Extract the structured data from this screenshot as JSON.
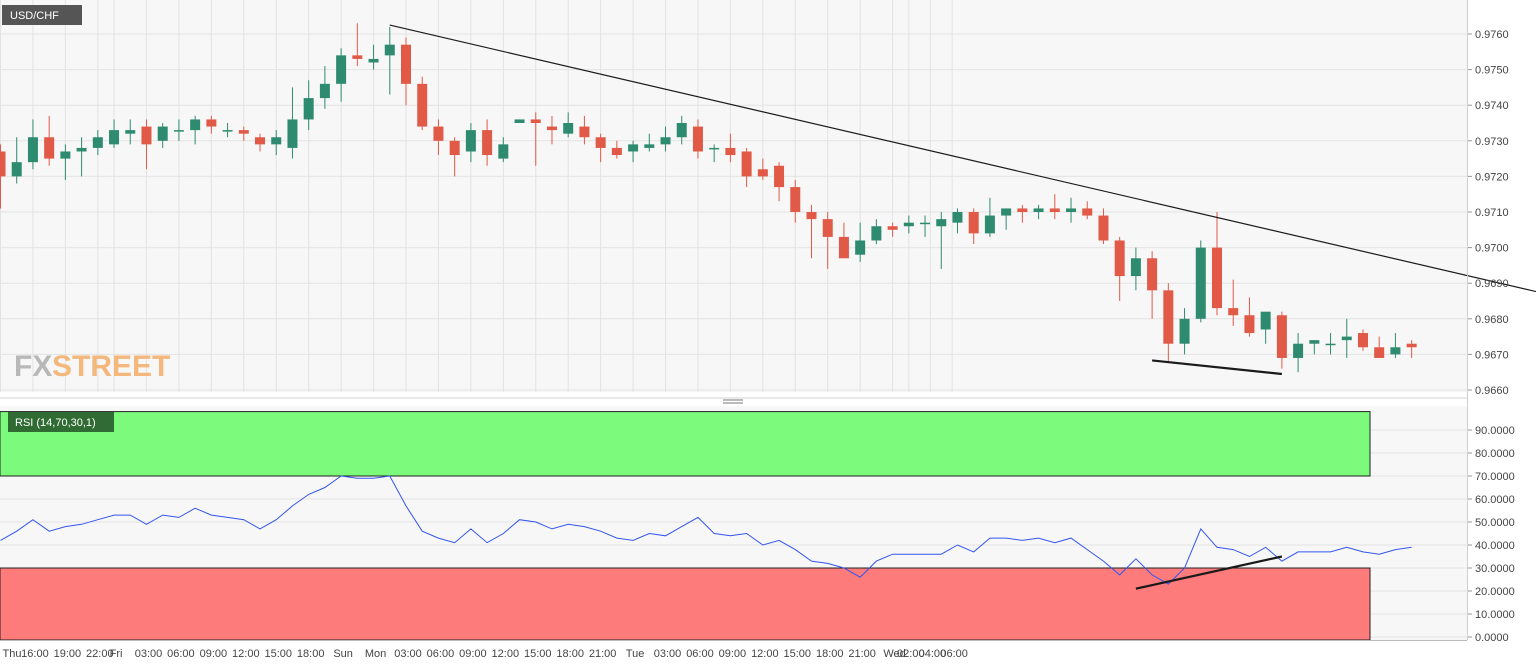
{
  "symbol": "USD/CHF",
  "watermark": {
    "part1": "FX",
    "part2": "STREET"
  },
  "colors": {
    "bull": "#2e8b6f",
    "bear": "#e05a47",
    "rsi_line": "#3355ee",
    "overbought_zone": "#7cfa7c",
    "oversold_zone": "#fd7b7b",
    "trendline": "#1a1a1a",
    "grid": "#e3e3e3",
    "panel_bg": "#f7f7f7"
  },
  "chart_data": [
    {
      "type": "candlestick",
      "title": "USD/CHF",
      "interval": "90 minutes",
      "ylim": [
        0.9658,
        0.9766
      ],
      "y_ticks": [
        "0.9760",
        "0.9750",
        "0.9740",
        "0.9730",
        "0.9720",
        "0.9710",
        "0.9700",
        "0.9690",
        "0.9680",
        "0.9670",
        "0.9660"
      ],
      "x_ticks": [
        "Thu",
        "16:00",
        "19:00",
        "22:00",
        "Fri",
        "03:00",
        "06:00",
        "09:00",
        "12:00",
        "15:00",
        "18:00",
        "Sun",
        "Mon",
        "03:00",
        "06:00",
        "09:00",
        "12:00",
        "15:00",
        "18:00",
        "21:00",
        "Tue",
        "03:00",
        "06:00",
        "09:00",
        "12:00",
        "15:00",
        "18:00",
        "21:00",
        "Wed",
        "02:00",
        "04:00",
        "06:00"
      ],
      "x_tick_index": [
        0,
        2,
        4,
        6,
        7,
        9,
        11,
        13,
        15,
        17,
        19,
        21,
        23,
        25,
        27,
        29,
        31,
        33,
        35,
        37,
        39,
        41,
        43,
        45,
        47,
        49,
        51,
        53,
        55,
        56,
        57.33,
        58.67
      ],
      "candles": [
        {
          "o": 0.9727,
          "h": 0.9729,
          "l": 0.9711,
          "c": 0.972
        },
        {
          "o": 0.972,
          "h": 0.9731,
          "l": 0.9718,
          "c": 0.9724
        },
        {
          "o": 0.9724,
          "h": 0.9736,
          "l": 0.9722,
          "c": 0.9731
        },
        {
          "o": 0.9731,
          "h": 0.9737,
          "l": 0.9723,
          "c": 0.9725
        },
        {
          "o": 0.9725,
          "h": 0.9729,
          "l": 0.9719,
          "c": 0.9727
        },
        {
          "o": 0.9727,
          "h": 0.9731,
          "l": 0.972,
          "c": 0.9728
        },
        {
          "o": 0.9728,
          "h": 0.9733,
          "l": 0.9726,
          "c": 0.9731
        },
        {
          "o": 0.9729,
          "h": 0.9736,
          "l": 0.9728,
          "c": 0.9733
        },
        {
          "o": 0.9732,
          "h": 0.9736,
          "l": 0.9729,
          "c": 0.9733
        },
        {
          "o": 0.9734,
          "h": 0.9736,
          "l": 0.9722,
          "c": 0.9729
        },
        {
          "o": 0.973,
          "h": 0.9735,
          "l": 0.9728,
          "c": 0.9734
        },
        {
          "o": 0.9733,
          "h": 0.9736,
          "l": 0.973,
          "c": 0.9733
        },
        {
          "o": 0.9733,
          "h": 0.9737,
          "l": 0.9729,
          "c": 0.9736
        },
        {
          "o": 0.9736,
          "h": 0.9737,
          "l": 0.9732,
          "c": 0.9734
        },
        {
          "o": 0.9733,
          "h": 0.9735,
          "l": 0.9731,
          "c": 0.9733
        },
        {
          "o": 0.9733,
          "h": 0.9734,
          "l": 0.973,
          "c": 0.9732
        },
        {
          "o": 0.9731,
          "h": 0.9732,
          "l": 0.9727,
          "c": 0.9729
        },
        {
          "o": 0.9729,
          "h": 0.9733,
          "l": 0.9726,
          "c": 0.9731
        },
        {
          "o": 0.9728,
          "h": 0.9745,
          "l": 0.9725,
          "c": 0.9736
        },
        {
          "o": 0.9736,
          "h": 0.9747,
          "l": 0.9733,
          "c": 0.9742
        },
        {
          "o": 0.9742,
          "h": 0.9751,
          "l": 0.9739,
          "c": 0.9746
        },
        {
          "o": 0.9746,
          "h": 0.9756,
          "l": 0.9741,
          "c": 0.9754
        },
        {
          "o": 0.9754,
          "h": 0.9763,
          "l": 0.9751,
          "c": 0.9753
        },
        {
          "o": 0.9752,
          "h": 0.9757,
          "l": 0.975,
          "c": 0.9753
        },
        {
          "o": 0.9754,
          "h": 0.9762,
          "l": 0.9743,
          "c": 0.9757
        },
        {
          "o": 0.9757,
          "h": 0.9759,
          "l": 0.974,
          "c": 0.9746
        },
        {
          "o": 0.9746,
          "h": 0.9748,
          "l": 0.9733,
          "c": 0.9734
        },
        {
          "o": 0.9734,
          "h": 0.9736,
          "l": 0.9726,
          "c": 0.973
        },
        {
          "o": 0.973,
          "h": 0.9731,
          "l": 0.972,
          "c": 0.9726
        },
        {
          "o": 0.9727,
          "h": 0.9735,
          "l": 0.9724,
          "c": 0.9733
        },
        {
          "o": 0.9733,
          "h": 0.9736,
          "l": 0.9723,
          "c": 0.9726
        },
        {
          "o": 0.9725,
          "h": 0.9731,
          "l": 0.9724,
          "c": 0.9729
        },
        {
          "o": 0.9735,
          "h": 0.9736,
          "l": 0.9735,
          "c": 0.9736
        },
        {
          "o": 0.9736,
          "h": 0.9738,
          "l": 0.9723,
          "c": 0.9735
        },
        {
          "o": 0.9734,
          "h": 0.9737,
          "l": 0.9729,
          "c": 0.9733
        },
        {
          "o": 0.9732,
          "h": 0.9738,
          "l": 0.9731,
          "c": 0.9735
        },
        {
          "o": 0.9734,
          "h": 0.9737,
          "l": 0.9729,
          "c": 0.9731
        },
        {
          "o": 0.9731,
          "h": 0.9732,
          "l": 0.9724,
          "c": 0.9728
        },
        {
          "o": 0.9728,
          "h": 0.973,
          "l": 0.9725,
          "c": 0.9726
        },
        {
          "o": 0.9727,
          "h": 0.973,
          "l": 0.9724,
          "c": 0.9729
        },
        {
          "o": 0.9728,
          "h": 0.9732,
          "l": 0.9727,
          "c": 0.9729
        },
        {
          "o": 0.9729,
          "h": 0.9734,
          "l": 0.9727,
          "c": 0.9731
        },
        {
          "o": 0.9731,
          "h": 0.9737,
          "l": 0.9729,
          "c": 0.9735
        },
        {
          "o": 0.9734,
          "h": 0.9736,
          "l": 0.9725,
          "c": 0.9727
        },
        {
          "o": 0.9728,
          "h": 0.9729,
          "l": 0.9724,
          "c": 0.9728
        },
        {
          "o": 0.9728,
          "h": 0.9732,
          "l": 0.9724,
          "c": 0.9726
        },
        {
          "o": 0.9727,
          "h": 0.9728,
          "l": 0.9717,
          "c": 0.972
        },
        {
          "o": 0.9722,
          "h": 0.9725,
          "l": 0.9719,
          "c": 0.972
        },
        {
          "o": 0.9723,
          "h": 0.9724,
          "l": 0.9713,
          "c": 0.9717
        },
        {
          "o": 0.9717,
          "h": 0.9719,
          "l": 0.9707,
          "c": 0.971
        },
        {
          "o": 0.971,
          "h": 0.9712,
          "l": 0.9697,
          "c": 0.9708
        },
        {
          "o": 0.9708,
          "h": 0.971,
          "l": 0.9694,
          "c": 0.9703
        },
        {
          "o": 0.9703,
          "h": 0.9707,
          "l": 0.9698,
          "c": 0.9697
        },
        {
          "o": 0.9698,
          "h": 0.9707,
          "l": 0.9696,
          "c": 0.9702
        },
        {
          "o": 0.9702,
          "h": 0.9708,
          "l": 0.9701,
          "c": 0.9706
        },
        {
          "o": 0.9706,
          "h": 0.9707,
          "l": 0.9703,
          "c": 0.9705
        },
        {
          "o": 0.9706,
          "h": 0.9709,
          "l": 0.9704,
          "c": 0.9707
        },
        {
          "o": 0.9707,
          "h": 0.9709,
          "l": 0.9703,
          "c": 0.9707
        },
        {
          "o": 0.9706,
          "h": 0.971,
          "l": 0.9694,
          "c": 0.9708
        },
        {
          "o": 0.9707,
          "h": 0.9711,
          "l": 0.9704,
          "c": 0.971
        },
        {
          "o": 0.971,
          "h": 0.9711,
          "l": 0.9701,
          "c": 0.9704
        },
        {
          "o": 0.9704,
          "h": 0.9714,
          "l": 0.9703,
          "c": 0.9709
        },
        {
          "o": 0.9709,
          "h": 0.9711,
          "l": 0.9705,
          "c": 0.9711
        },
        {
          "o": 0.9711,
          "h": 0.9712,
          "l": 0.9707,
          "c": 0.971
        },
        {
          "o": 0.971,
          "h": 0.9712,
          "l": 0.9708,
          "c": 0.9711
        },
        {
          "o": 0.9711,
          "h": 0.9715,
          "l": 0.9708,
          "c": 0.971
        },
        {
          "o": 0.971,
          "h": 0.9714,
          "l": 0.9707,
          "c": 0.9711
        },
        {
          "o": 0.9711,
          "h": 0.9713,
          "l": 0.9708,
          "c": 0.9709
        },
        {
          "o": 0.9709,
          "h": 0.9711,
          "l": 0.9701,
          "c": 0.9702
        },
        {
          "o": 0.9702,
          "h": 0.9703,
          "l": 0.9685,
          "c": 0.9692
        },
        {
          "o": 0.9692,
          "h": 0.97,
          "l": 0.9688,
          "c": 0.9697
        },
        {
          "o": 0.9697,
          "h": 0.9699,
          "l": 0.968,
          "c": 0.9688
        },
        {
          "o": 0.9688,
          "h": 0.969,
          "l": 0.9668,
          "c": 0.9673
        },
        {
          "o": 0.9673,
          "h": 0.9683,
          "l": 0.967,
          "c": 0.968
        },
        {
          "o": 0.968,
          "h": 0.9702,
          "l": 0.9679,
          "c": 0.97
        },
        {
          "o": 0.97,
          "h": 0.971,
          "l": 0.9681,
          "c": 0.9683
        },
        {
          "o": 0.9683,
          "h": 0.9691,
          "l": 0.9678,
          "c": 0.9681
        },
        {
          "o": 0.9681,
          "h": 0.9686,
          "l": 0.9675,
          "c": 0.9676
        },
        {
          "o": 0.9677,
          "h": 0.9681,
          "l": 0.9673,
          "c": 0.9682
        },
        {
          "o": 0.9681,
          "h": 0.9682,
          "l": 0.9666,
          "c": 0.9669
        },
        {
          "o": 0.9669,
          "h": 0.9676,
          "l": 0.9665,
          "c": 0.9673
        },
        {
          "o": 0.9673,
          "h": 0.9674,
          "l": 0.967,
          "c": 0.9674
        },
        {
          "o": 0.9673,
          "h": 0.9676,
          "l": 0.967,
          "c": 0.9673
        },
        {
          "o": 0.9674,
          "h": 0.968,
          "l": 0.9669,
          "c": 0.9675
        },
        {
          "o": 0.9676,
          "h": 0.9677,
          "l": 0.9671,
          "c": 0.9672
        },
        {
          "o": 0.9672,
          "h": 0.9675,
          "l": 0.9669,
          "c": 0.9669
        },
        {
          "o": 0.967,
          "h": 0.9676,
          "l": 0.9669,
          "c": 0.9672
        },
        {
          "o": 0.9673,
          "h": 0.9674,
          "l": 0.9669,
          "c": 0.9672
        }
      ],
      "annotations": [
        {
          "type": "trendline",
          "x1": 24,
          "y1": 0.97625,
          "x2": 100,
          "y2": 0.9682
        },
        {
          "type": "trendline",
          "x1": 71,
          "y1": 0.96683,
          "x2": 79,
          "y2": 0.96645
        }
      ]
    },
    {
      "type": "line",
      "title": "RSI (14,70,30,1)",
      "ylim": [
        0,
        100
      ],
      "y_ticks": [
        "90.0000",
        "80.0000",
        "70.0000",
        "60.0000",
        "50.0000",
        "40.0000",
        "30.0000",
        "20.0000",
        "10.0000",
        "0.0000"
      ],
      "bands": {
        "overbought": [
          70,
          98
        ],
        "oversold": [
          0,
          30
        ]
      },
      "values": [
        42,
        46,
        51,
        46,
        48,
        49,
        51,
        53,
        53,
        49,
        53,
        52,
        56,
        53,
        52,
        51,
        47,
        51,
        57,
        62,
        65,
        70,
        69,
        69,
        70,
        57,
        46,
        43,
        41,
        47,
        41,
        45,
        51,
        50,
        47,
        49,
        48,
        46,
        43,
        42,
        45,
        44,
        48,
        52,
        45,
        44,
        45,
        40,
        42,
        38,
        33,
        32,
        30,
        26,
        33,
        36,
        36,
        36,
        36,
        40,
        37,
        43,
        43,
        42,
        43,
        41,
        43,
        38,
        33,
        27,
        34,
        27,
        23,
        30,
        47,
        39,
        38,
        35,
        39,
        33,
        37,
        37,
        37,
        39,
        37,
        36,
        38,
        39
      ],
      "annotations": [
        {
          "type": "trendline",
          "x1": 70,
          "y1": 21,
          "x2": 79,
          "y2": 35
        }
      ]
    }
  ]
}
